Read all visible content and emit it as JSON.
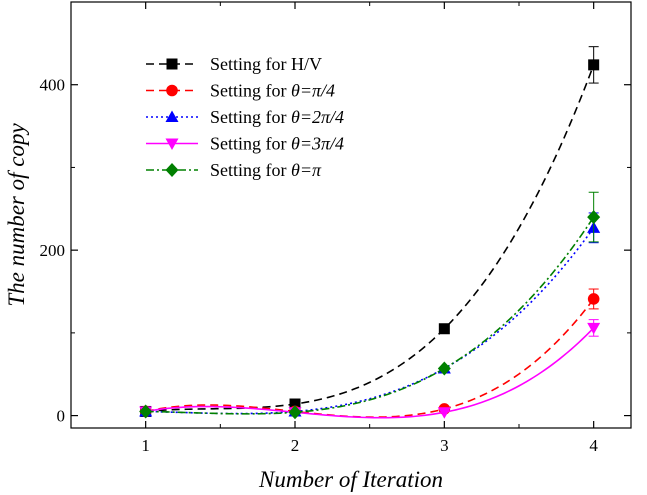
{
  "chart_data": {
    "type": "line",
    "title": "",
    "xlabel": "Number of Iteration",
    "ylabel": "The number of copy",
    "xlim": [
      0.5,
      4.25
    ],
    "ylim": [
      -15,
      500
    ],
    "x_ticks": [
      1,
      2,
      3,
      4
    ],
    "x_tick_labels": [
      "1",
      "2",
      "3",
      "4"
    ],
    "y_ticks": [
      0,
      200,
      400
    ],
    "y_tick_labels": [
      "0",
      "200",
      "400"
    ],
    "y_minor_step": 100,
    "grid": false,
    "legend_position": "top-left",
    "categories": [
      1,
      2,
      3,
      4
    ],
    "series": [
      {
        "name": "Setting for H/V",
        "legend_parts": [
          {
            "text": "Setting for H/V",
            "italic": false
          }
        ],
        "color": "#000000",
        "marker": "square",
        "dash": "dashed",
        "values": [
          5,
          14,
          105,
          424
        ],
        "errors": [
          0,
          0,
          0,
          22
        ]
      },
      {
        "name": "Setting for θ=π/4",
        "legend_parts": [
          {
            "text": "Setting for ",
            "italic": false
          },
          {
            "text": "θ=π/4",
            "italic": true
          }
        ],
        "color": "#ff0000",
        "marker": "circle",
        "dash": "dashed",
        "values": [
          5,
          5,
          8,
          141
        ],
        "errors": [
          0,
          0,
          0,
          12
        ]
      },
      {
        "name": "Setting for θ=2π/4",
        "legend_parts": [
          {
            "text": "Setting for ",
            "italic": false
          },
          {
            "text": "θ=2π/4",
            "italic": true
          }
        ],
        "color": "#0000ff",
        "marker": "triangle-up",
        "dash": "dotted",
        "values": [
          5,
          5,
          57,
          227
        ],
        "errors": [
          0,
          0,
          0,
          18
        ]
      },
      {
        "name": "Setting for θ=3π/4",
        "legend_parts": [
          {
            "text": "Setting for ",
            "italic": false
          },
          {
            "text": "θ=3π/4",
            "italic": true
          }
        ],
        "color": "#ff00ff",
        "marker": "triangle-down",
        "dash": "solid",
        "values": [
          5,
          4,
          4,
          106
        ],
        "errors": [
          0,
          0,
          0,
          10
        ]
      },
      {
        "name": "Setting for θ=π",
        "legend_parts": [
          {
            "text": "Setting for ",
            "italic": false
          },
          {
            "text": "θ=π",
            "italic": true
          }
        ],
        "color": "#008000",
        "marker": "diamond",
        "dash": "dash-dot",
        "values": [
          5,
          4,
          57,
          240
        ],
        "errors": [
          0,
          0,
          0,
          30
        ]
      }
    ]
  }
}
